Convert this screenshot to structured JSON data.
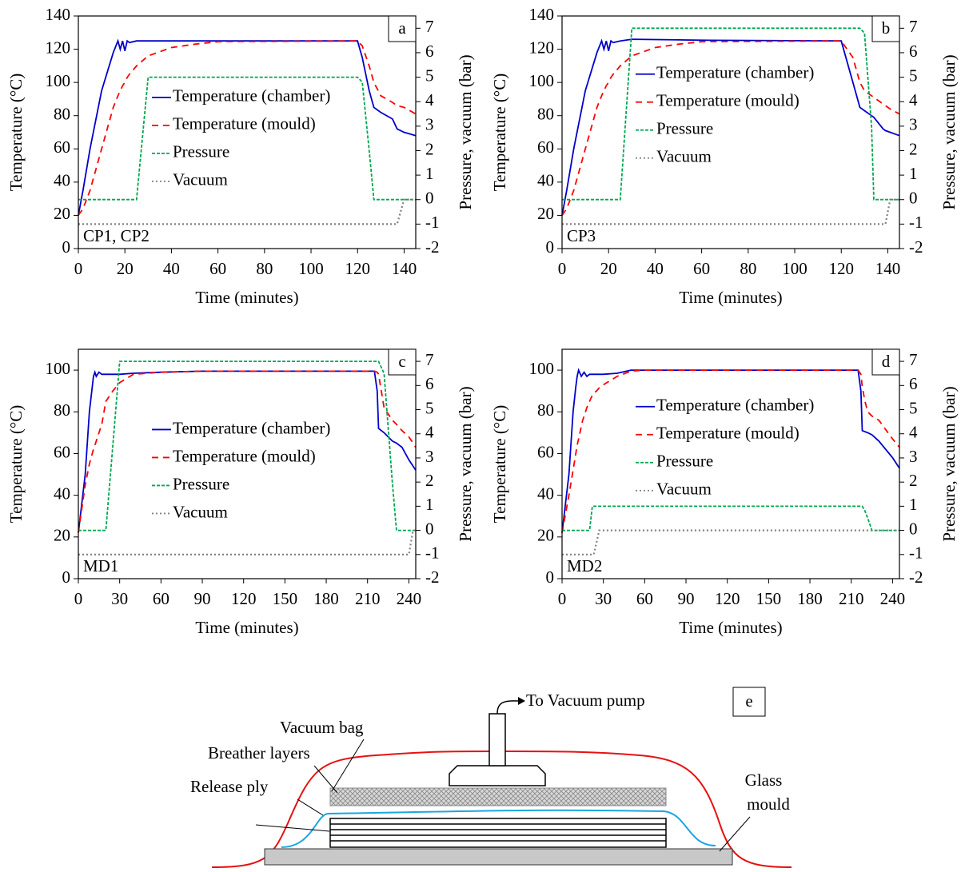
{
  "chart_data": [
    {
      "type": "line",
      "panel": "a",
      "annotation": "CP1, CP2",
      "x_label": "Time (minutes)",
      "y_label": "Temperature (°C)",
      "y2_label": "Pressure, vacuum (bar)",
      "legend": "center",
      "xlim": [
        0,
        145
      ],
      "xticks": [
        0,
        20,
        40,
        60,
        80,
        100,
        120,
        140
      ],
      "ylim": [
        0,
        140
      ],
      "yticks": [
        0,
        20,
        40,
        60,
        80,
        100,
        120,
        140
      ],
      "y2lim": [
        -2,
        7.5
      ],
      "y2ticks": [
        -2,
        -1,
        0,
        1,
        2,
        3,
        4,
        5,
        6,
        7
      ],
      "x": [
        0,
        2,
        5,
        10,
        15,
        17,
        18,
        19,
        20,
        21,
        22,
        25,
        30,
        40,
        50,
        60,
        120,
        122,
        125,
        127,
        130,
        135,
        137,
        140,
        145
      ],
      "series": [
        {
          "name": "Temperature (chamber)",
          "color": "#0000cc",
          "style": "solid",
          "values": [
            20,
            35,
            60,
            95,
            118,
            125,
            120,
            125,
            119,
            125,
            124,
            125,
            125,
            125,
            125,
            125,
            125,
            115,
            95,
            85,
            82,
            78,
            72,
            70,
            68
          ]
        },
        {
          "name": "Temperature (mould)",
          "color": "#ff0000",
          "style": "dashed",
          "values": [
            20,
            24,
            35,
            60,
            85,
            92,
            95,
            98,
            100,
            103,
            105,
            110,
            116,
            121,
            123,
            124.5,
            125,
            122,
            110,
            100,
            92,
            88,
            86,
            85,
            81
          ]
        },
        {
          "name": "Pressure",
          "color": "#00a650",
          "style": "short-dashed",
          "axis": "y2",
          "values": [
            0,
            0,
            0,
            0,
            0,
            0,
            0,
            0,
            0,
            0,
            0,
            0,
            5,
            5,
            5,
            5,
            5,
            4.8,
            2,
            0,
            0,
            0,
            0,
            0,
            0
          ]
        },
        {
          "name": "Vacuum",
          "color": "#808080",
          "style": "dotted",
          "axis": "y2",
          "values": [
            -1,
            -1,
            -1,
            -1,
            -1,
            -1,
            -1,
            -1,
            -1,
            -1,
            -1,
            -1,
            -1,
            -1,
            -1,
            -1,
            -1,
            -1,
            -1,
            -1,
            -1,
            -1,
            -1,
            0,
            0
          ]
        }
      ]
    },
    {
      "type": "line",
      "panel": "b",
      "annotation": "CP3",
      "x_label": "Time (minutes)",
      "y_label": "Temperature (°C)",
      "y2_label": "Pressure, vacuum (bar)",
      "legend": "upper center",
      "xlim": [
        0,
        145
      ],
      "xticks": [
        0,
        20,
        40,
        60,
        80,
        100,
        120,
        140
      ],
      "ylim": [
        0,
        140
      ],
      "yticks": [
        0,
        20,
        40,
        60,
        80,
        100,
        120,
        140
      ],
      "y2lim": [
        -2,
        7.5
      ],
      "y2ticks": [
        -2,
        -1,
        0,
        1,
        2,
        3,
        4,
        5,
        6,
        7
      ],
      "x": [
        0,
        2,
        5,
        10,
        15,
        17,
        18,
        19,
        20,
        21,
        22,
        25,
        30,
        40,
        50,
        60,
        120,
        125,
        128,
        130,
        133,
        134,
        138,
        139,
        141,
        145
      ],
      "series": [
        {
          "name": "Temperature (chamber)",
          "color": "#0000cc",
          "style": "solid",
          "values": [
            20,
            35,
            60,
            95,
            118,
            125,
            120,
            125,
            119,
            125,
            124,
            125,
            126,
            125.8,
            125.6,
            125.4,
            125,
            100,
            85,
            83,
            80,
            79,
            72,
            71,
            70,
            68
          ]
        },
        {
          "name": "Temperature (mould)",
          "color": "#ff0000",
          "style": "dashed",
          "values": [
            20,
            24,
            35,
            60,
            85,
            92,
            95,
            98,
            100,
            103,
            105,
            110,
            116,
            121,
            123,
            124.5,
            125,
            115,
            100,
            95,
            92,
            91,
            87,
            86,
            84,
            81
          ]
        },
        {
          "name": "Pressure",
          "color": "#00a650",
          "style": "short-dashed",
          "axis": "y2",
          "values": [
            0,
            0,
            0,
            0,
            0,
            0,
            0,
            0,
            0,
            0,
            0,
            0,
            7,
            7,
            7,
            7,
            7,
            7,
            7,
            6.8,
            3,
            0,
            0,
            0,
            0,
            0
          ]
        },
        {
          "name": "Vacuum",
          "color": "#808080",
          "style": "dotted",
          "axis": "y2",
          "values": [
            -1,
            -1,
            -1,
            -1,
            -1,
            -1,
            -1,
            -1,
            -1,
            -1,
            -1,
            -1,
            -1,
            -1,
            -1,
            -1,
            -1,
            -1,
            -1,
            -1,
            -1,
            -1,
            -1,
            -1,
            0,
            0
          ]
        }
      ]
    },
    {
      "type": "line",
      "panel": "c",
      "annotation": "MD1",
      "x_label": "Time (minutes)",
      "y_label": "Temperature (°C)",
      "y2_label": "Pressure, vacuum (bar)",
      "legend": "center",
      "xlim": [
        0,
        245
      ],
      "xticks": [
        0,
        30,
        60,
        90,
        120,
        150,
        180,
        210,
        240
      ],
      "ylim": [
        0,
        110
      ],
      "yticks": [
        0,
        20,
        40,
        60,
        80,
        100
      ],
      "y2lim": [
        -2,
        7.5
      ],
      "y2ticks": [
        -2,
        -1,
        0,
        1,
        2,
        3,
        4,
        5,
        6,
        7
      ],
      "x": [
        0,
        5,
        8,
        11,
        12,
        13,
        15,
        17,
        20,
        25,
        30,
        40,
        60,
        90,
        215,
        217,
        218,
        222,
        228,
        231,
        235,
        240,
        243,
        245
      ],
      "series": [
        {
          "name": "Temperature (chamber)",
          "color": "#0000cc",
          "style": "solid",
          "values": [
            22,
            50,
            80,
            97,
            99,
            97,
            99,
            98,
            98,
            98,
            98,
            98.5,
            99,
            99.5,
            99.5,
            90,
            72,
            70,
            66,
            65,
            63,
            57,
            54,
            52
          ]
        },
        {
          "name": "Temperature (mould)",
          "color": "#ff0000",
          "style": "dashed",
          "values": [
            22,
            45,
            55,
            62,
            64,
            66,
            70,
            74,
            85,
            90,
            94,
            98,
            99,
            99.5,
            99.5,
            99,
            98,
            82,
            76,
            74,
            71,
            68,
            65,
            63
          ]
        },
        {
          "name": "Pressure",
          "color": "#00a650",
          "style": "short-dashed",
          "axis": "y2",
          "values": [
            0,
            0,
            0,
            0,
            0,
            0,
            0,
            0,
            0,
            3.5,
            7,
            7,
            7,
            7,
            7,
            7,
            7,
            6.5,
            2,
            0,
            0,
            0,
            0,
            0
          ]
        },
        {
          "name": "Vacuum",
          "color": "#808080",
          "style": "dotted",
          "axis": "y2",
          "values": [
            -1,
            -1,
            -1,
            -1,
            -1,
            -1,
            -1,
            -1,
            -1,
            -1,
            -1,
            -1,
            -1,
            -1,
            -1,
            -1,
            -1,
            -1,
            -1,
            -1,
            -1,
            -1,
            0,
            0
          ]
        }
      ]
    },
    {
      "type": "line",
      "panel": "d",
      "annotation": "MD2",
      "x_label": "Time (minutes)",
      "y_label": "Temperature (°C)",
      "y2_label": "Pressure, vacuum (bar)",
      "legend": "upper center",
      "xlim": [
        0,
        245
      ],
      "xticks": [
        0,
        30,
        60,
        90,
        120,
        150,
        180,
        210,
        240
      ],
      "ylim": [
        0,
        110
      ],
      "yticks": [
        0,
        20,
        40,
        60,
        80,
        100
      ],
      "y2lim": [
        -2,
        7.5
      ],
      "y2ticks": [
        -2,
        -1,
        0,
        1,
        2,
        3,
        4,
        5,
        6,
        7
      ],
      "x": [
        0,
        5,
        8,
        10,
        11,
        12,
        14,
        15,
        16,
        18,
        20,
        22,
        23,
        25,
        27,
        30,
        40,
        50,
        60,
        215,
        217,
        218,
        220,
        222,
        225,
        230,
        240,
        245
      ],
      "series": [
        {
          "name": "Temperature (chamber)",
          "color": "#0000cc",
          "style": "solid",
          "values": [
            22,
            50,
            80,
            92,
            97,
            100,
            97,
            98,
            99,
            97,
            98,
            98,
            98,
            98,
            98,
            98,
            98.5,
            100,
            100,
            100,
            90,
            71,
            70.5,
            70,
            69,
            66,
            58,
            53
          ]
        },
        {
          "name": "Temperature (mould)",
          "color": "#ff0000",
          "style": "dashed",
          "values": [
            22,
            40,
            52,
            60,
            64,
            67,
            73,
            76,
            78,
            82,
            85,
            88,
            89,
            90,
            91.5,
            93,
            97,
            99.5,
            100,
            100,
            98,
            92,
            85,
            80,
            78,
            76,
            67,
            63
          ]
        },
        {
          "name": "Pressure",
          "color": "#00a650",
          "style": "short-dashed",
          "axis": "y2",
          "values": [
            0,
            0,
            0,
            0,
            0,
            0,
            0,
            0,
            0,
            0,
            0,
            1,
            1,
            1,
            1,
            1,
            1,
            1,
            1,
            1,
            1,
            1,
            0.8,
            0.5,
            0,
            0,
            0,
            0
          ]
        },
        {
          "name": "Vacuum",
          "color": "#808080",
          "style": "dotted",
          "axis": "y2",
          "values": [
            -1,
            -1,
            -1,
            -1,
            -1,
            -1,
            -1,
            -1,
            -1,
            -1,
            -1,
            -1,
            -1,
            -0.5,
            0,
            0,
            0,
            0,
            0,
            0,
            0,
            0,
            0,
            0,
            0,
            0,
            0,
            0
          ]
        }
      ]
    }
  ],
  "diagram": {
    "label": "e",
    "pump": "To Vacuum pump",
    "bag": "Vacuum bag",
    "breather": "Breather layers",
    "release": "Release ply",
    "mould": [
      "Glass",
      "mould"
    ]
  }
}
